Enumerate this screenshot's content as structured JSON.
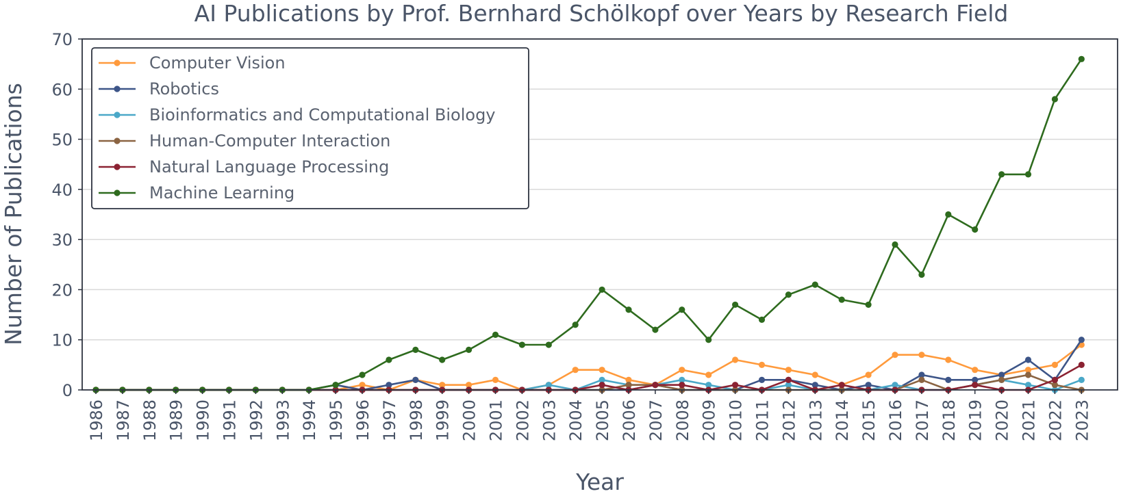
{
  "chart_data": {
    "type": "line",
    "title": "AI Publications by Prof. Bernhard Schölkopf over Years by Research Field",
    "xlabel": "Year",
    "ylabel": "Number of Publications",
    "ylim": [
      0,
      70
    ],
    "yticks": [
      0,
      10,
      20,
      30,
      40,
      50,
      60,
      70
    ],
    "grid": "horizontal",
    "legend_position": "top-left",
    "x": [
      "1986",
      "1987",
      "1988",
      "1989",
      "1990",
      "1991",
      "1992",
      "1993",
      "1994",
      "1995",
      "1996",
      "1997",
      "1998",
      "1999",
      "2000",
      "2001",
      "2002",
      "2003",
      "2004",
      "2005",
      "2006",
      "2007",
      "2008",
      "2009",
      "2010",
      "2011",
      "2012",
      "2013",
      "2014",
      "2015",
      "2016",
      "2017",
      "2018",
      "2019",
      "2020",
      "2021",
      "2022",
      "2023"
    ],
    "series": [
      {
        "name": "Computer Vision",
        "color": "#ff9a3c",
        "values": [
          0,
          0,
          0,
          0,
          0,
          0,
          0,
          0,
          0,
          0,
          1,
          0,
          2,
          1,
          1,
          2,
          0,
          1,
          4,
          4,
          2,
          1,
          4,
          3,
          6,
          5,
          4,
          3,
          1,
          3,
          7,
          7,
          6,
          4,
          3,
          4,
          5,
          9
        ]
      },
      {
        "name": "Robotics",
        "color": "#3d5588",
        "values": [
          0,
          0,
          0,
          0,
          0,
          0,
          0,
          0,
          0,
          1,
          0,
          1,
          2,
          0,
          0,
          0,
          0,
          0,
          0,
          0,
          0,
          1,
          0,
          0,
          0,
          2,
          2,
          1,
          0,
          1,
          0,
          3,
          2,
          2,
          3,
          6,
          2,
          10
        ]
      },
      {
        "name": "Bioinformatics and Computational Biology",
        "color": "#4aa8c8",
        "values": [
          0,
          0,
          0,
          0,
          0,
          0,
          0,
          0,
          0,
          0,
          0,
          0,
          0,
          0,
          0,
          0,
          0,
          1,
          0,
          2,
          1,
          1,
          2,
          1,
          0,
          0,
          1,
          0,
          0,
          0,
          1,
          0,
          0,
          1,
          2,
          1,
          0,
          2
        ]
      },
      {
        "name": "Human-Computer Interaction",
        "color": "#8b6442",
        "values": [
          0,
          0,
          0,
          0,
          0,
          0,
          0,
          0,
          0,
          0,
          0,
          0,
          0,
          0,
          0,
          0,
          0,
          0,
          0,
          0,
          1,
          1,
          0,
          0,
          0,
          0,
          0,
          0,
          0,
          0,
          0,
          2,
          0,
          1,
          2,
          3,
          1,
          0
        ]
      },
      {
        "name": "Natural Language Processing",
        "color": "#8b2232",
        "values": [
          0,
          0,
          0,
          0,
          0,
          0,
          0,
          0,
          0,
          0,
          0,
          0,
          0,
          0,
          0,
          0,
          0,
          0,
          0,
          1,
          0,
          1,
          1,
          0,
          1,
          0,
          2,
          0,
          1,
          0,
          0,
          0,
          0,
          1,
          0,
          0,
          2,
          5
        ]
      },
      {
        "name": "Machine Learning",
        "color": "#2e6b1e",
        "values": [
          0,
          0,
          0,
          0,
          0,
          0,
          0,
          0,
          0,
          1,
          3,
          6,
          8,
          6,
          8,
          11,
          9,
          9,
          13,
          20,
          16,
          12,
          16,
          10,
          17,
          14,
          19,
          21,
          18,
          17,
          29,
          23,
          35,
          32,
          43,
          43,
          58,
          66
        ]
      }
    ]
  }
}
